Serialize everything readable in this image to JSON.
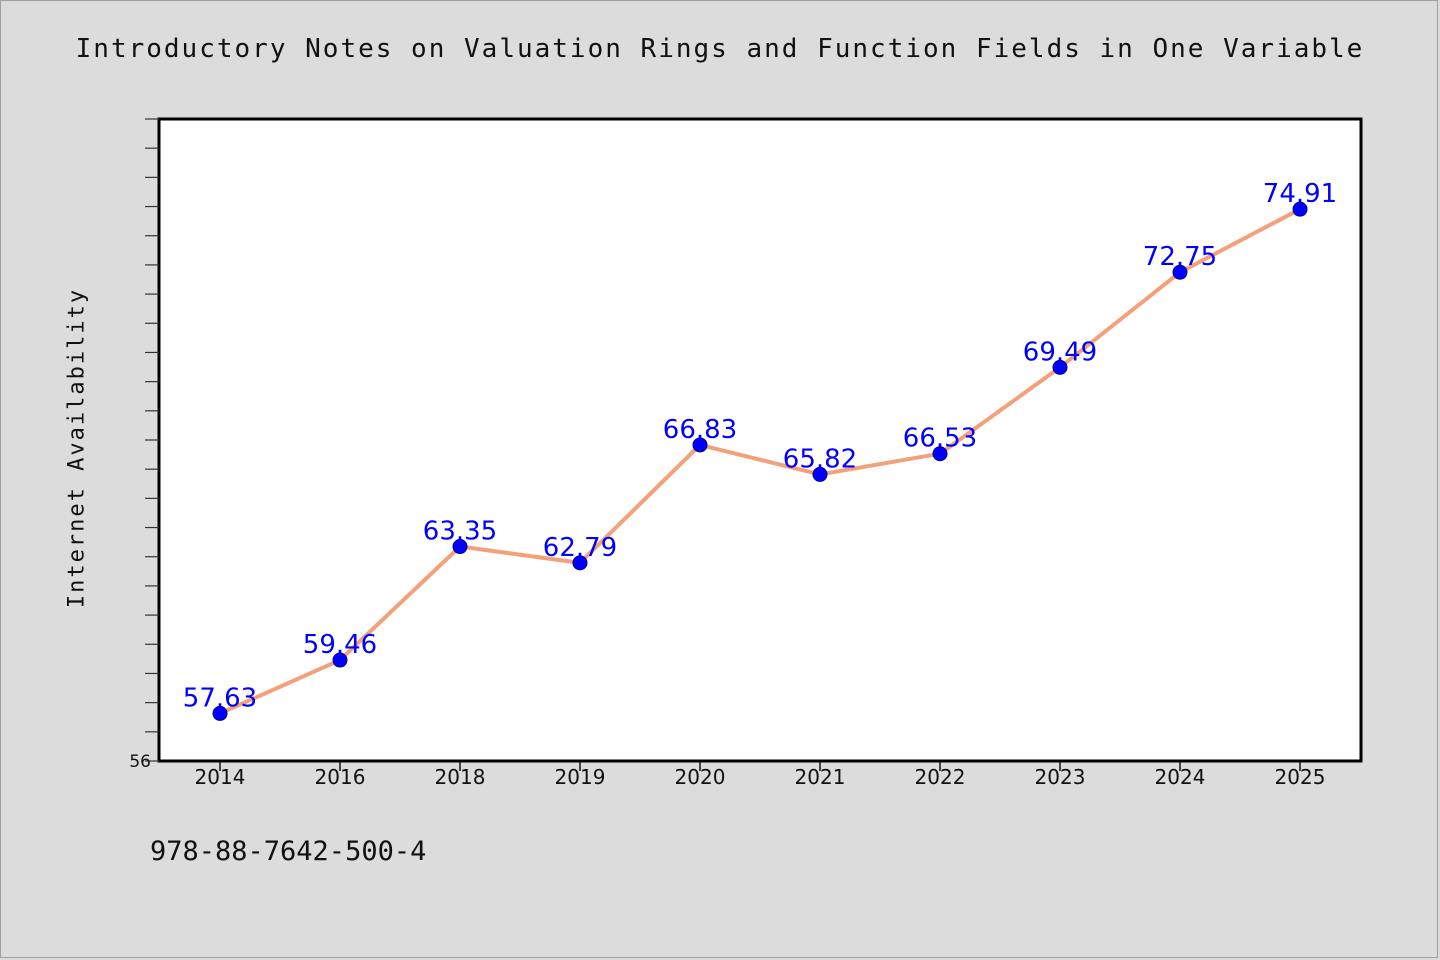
{
  "chart_data": {
    "type": "line",
    "title": "Introductory Notes on Valuation Rings and Function Fields in One Variable",
    "xlabel": "",
    "ylabel": "Internet Availability",
    "categories": [
      "2014",
      "2016",
      "2018",
      "2019",
      "2020",
      "2021",
      "2022",
      "2023",
      "2024",
      "2025"
    ],
    "series": [
      {
        "values": [
          57.63,
          59.46,
          63.35,
          62.79,
          66.83,
          65.82,
          66.53,
          69.49,
          72.75,
          74.91
        ]
      }
    ],
    "ylim": [
      56,
      78
    ],
    "y_axis_printed_label": "56",
    "line_color": "#f4a07a",
    "marker_color": "#0000ff",
    "label_color": "#0000ff",
    "plot_background": "#ffffff",
    "page_background": "#dcdcdc",
    "grid": false,
    "legend": "none"
  },
  "footer": {
    "isbn": "978-88-7642-500-4"
  }
}
